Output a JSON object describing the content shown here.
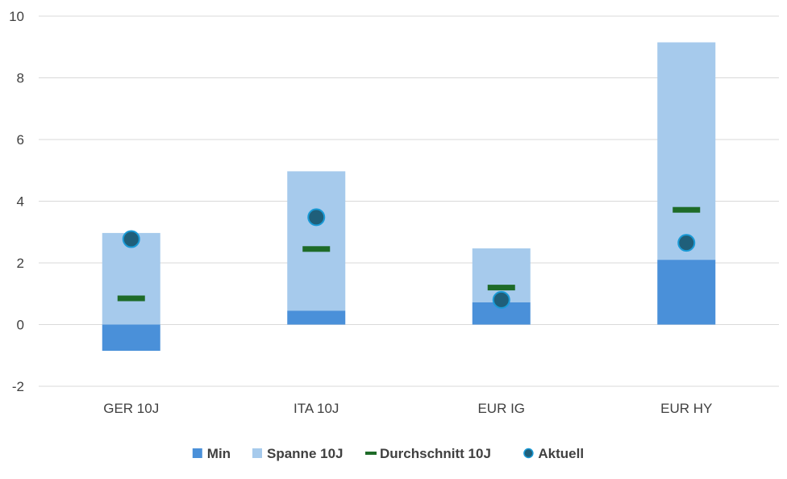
{
  "chart_data": {
    "type": "bar",
    "categories": [
      "GER 10J",
      "ITA 10J",
      "EUR IG",
      "EUR HY"
    ],
    "ylim": [
      -2,
      10
    ],
    "yticks": [
      -2,
      0,
      2,
      4,
      6,
      8,
      10
    ],
    "ytick_labels": [
      "-2",
      "0",
      "2",
      "4",
      "6",
      "8",
      "10"
    ],
    "grid": true,
    "legend_position": "bottom",
    "series": [
      {
        "name": "Min",
        "kind": "bar-stack-base",
        "values": [
          -0.85,
          0.45,
          0.72,
          2.1
        ],
        "color": "#4a90d9"
      },
      {
        "name": "Spanne 10J",
        "kind": "bar-stack-range",
        "values": [
          2.97,
          4.97,
          2.47,
          9.15
        ],
        "color": "#a6caec"
      },
      {
        "name": "Durchschnitt 10J",
        "kind": "marker-dash",
        "values": [
          0.85,
          2.45,
          1.2,
          3.72
        ],
        "color": "#1e6b28"
      },
      {
        "name": "Aktuell",
        "kind": "marker-circle",
        "values": [
          2.77,
          3.48,
          0.8,
          2.65
        ],
        "color": "#1f5f7a",
        "edge_color": "#1a9ad6"
      }
    ],
    "legend": [
      "Min",
      "Spanne 10J",
      "Durchschnitt 10J",
      "Aktuell"
    ]
  }
}
